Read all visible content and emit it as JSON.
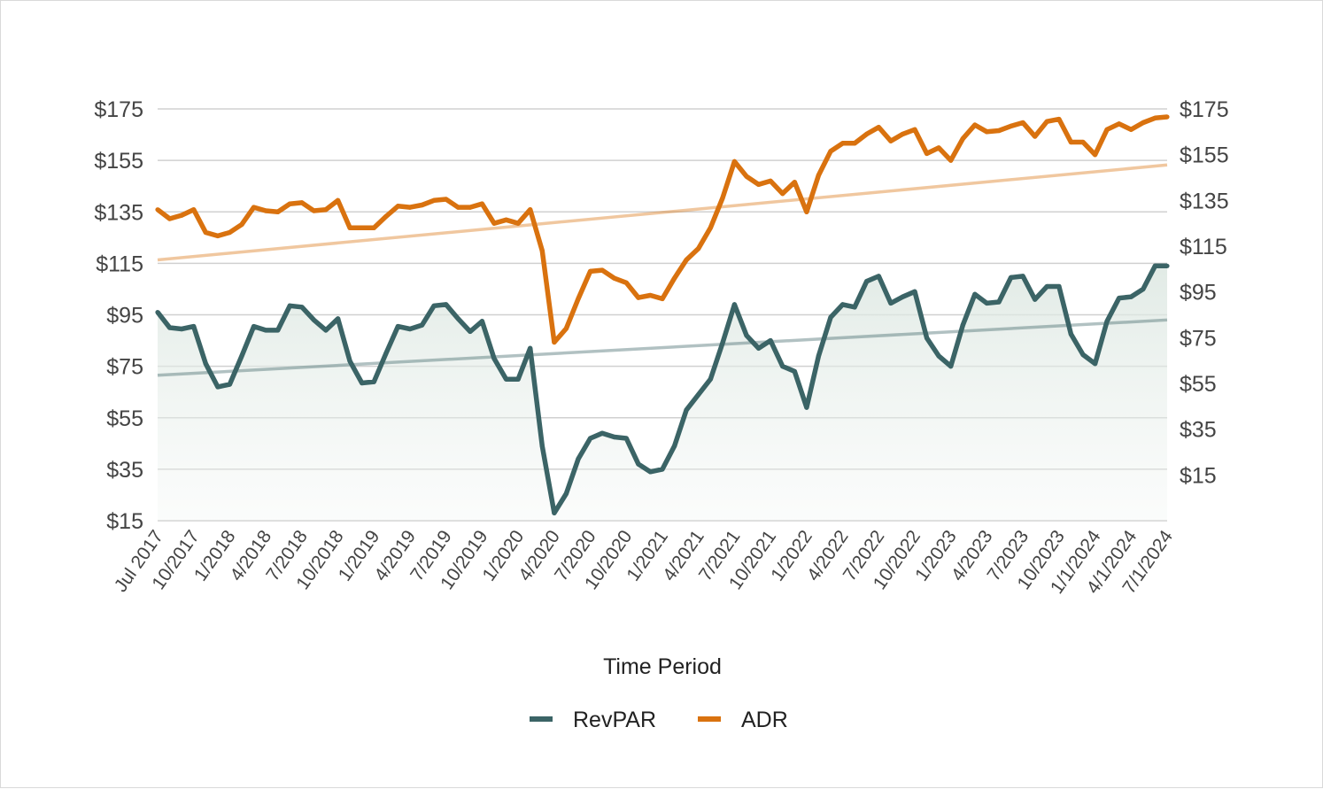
{
  "chart_data": {
    "type": "line",
    "xlabel": "Time Period",
    "x_tick_labels": [
      "Jul 2017",
      "10/2017",
      "1/2018",
      "4/2018",
      "7/2018",
      "10/2018",
      "1/2019",
      "4/2019",
      "7/2019",
      "10/2019",
      "1/2020",
      "4/2020",
      "7/2020",
      "10/2020",
      "1/2021",
      "4/2021",
      "7/2021",
      "10/2021",
      "1/2022",
      "4/2022",
      "7/2022",
      "10/2022",
      "1/2023",
      "4/2023",
      "7/2023",
      "10/2023",
      "1/1/2024",
      "4/1/2024",
      "7/1/2024"
    ],
    "x_start": "2017-07",
    "x_end": "2024-07",
    "left_axis": {
      "ylim": [
        15,
        175
      ],
      "ticks": [
        "$15",
        "$35",
        "$55",
        "$75",
        "$95",
        "$115",
        "$135",
        "$155",
        "$175"
      ]
    },
    "right_axis": {
      "ylim": [
        -5,
        175
      ],
      "ticks": [
        "$15",
        "$35",
        "$55",
        "$75",
        "$95",
        "$115",
        "$135",
        "$155",
        "$175"
      ]
    },
    "grid": true,
    "legend_position": "bottom",
    "series": [
      {
        "name": "RevPAR",
        "axis": "left",
        "color": "#3b6466",
        "fill": true,
        "values": [
          96,
          90,
          89.5,
          90.5,
          76,
          67,
          68,
          79,
          90.5,
          89,
          89,
          98.5,
          98,
          93,
          89,
          93.5,
          77,
          68.5,
          69,
          80,
          90.5,
          89.5,
          91,
          98.5,
          99,
          93.5,
          88.5,
          92.5,
          78,
          70,
          70,
          82,
          44,
          18,
          25.5,
          39,
          47,
          49,
          47.5,
          47,
          37,
          34,
          35,
          44,
          58,
          64,
          70,
          84,
          99,
          87,
          82,
          85,
          75,
          73,
          59,
          79,
          94,
          99,
          98,
          108,
          110,
          99.5,
          102,
          104,
          86,
          79,
          75,
          91,
          103,
          99.5,
          100,
          109.5,
          110,
          101,
          106,
          106,
          87.5,
          79.5,
          76,
          92.5,
          101.5,
          102,
          105,
          114,
          114
        ],
        "trendline": {
          "start": 71.5,
          "end": 93
        }
      },
      {
        "name": "ADR",
        "axis": "right",
        "color": "#d9720f",
        "fill": false,
        "values": [
          131,
          127,
          128.5,
          131,
          121,
          119.5,
          121,
          124.5,
          132,
          130.5,
          130,
          133.5,
          134,
          130.5,
          131,
          135,
          123,
          123,
          123,
          128,
          132.5,
          132,
          133,
          135,
          135.5,
          132,
          132,
          133.5,
          125,
          126.5,
          125,
          131,
          113,
          73,
          79,
          92,
          104,
          104.5,
          101,
          99,
          92.5,
          93.5,
          92,
          101,
          109,
          114,
          123,
          136,
          152,
          145.5,
          142,
          143.5,
          138,
          143,
          130,
          146,
          156.5,
          160,
          160,
          164,
          167,
          161,
          164,
          166,
          155.5,
          158,
          152.5,
          162,
          168,
          165,
          165.5,
          167.5,
          169,
          163,
          169.5,
          170.5,
          160.5,
          160.5,
          155,
          166,
          168.5,
          166,
          169,
          171,
          171.5
        ],
        "trendline": {
          "start": 109,
          "end": 150.5
        }
      }
    ]
  }
}
